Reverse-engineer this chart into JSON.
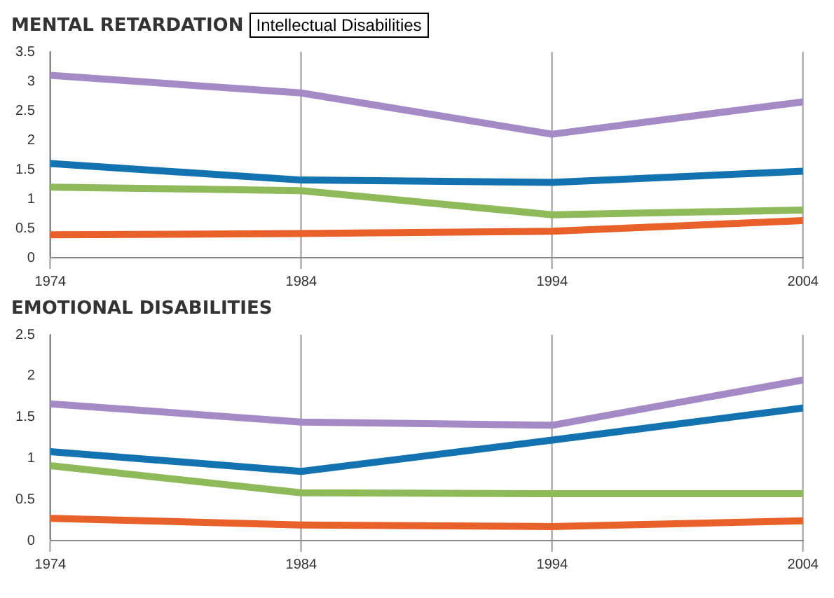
{
  "chart_data": [
    {
      "type": "line",
      "title": "MENTAL RETARDATION",
      "subtitle": "Intellectual Disabilities",
      "x": [
        1974,
        1984,
        1994,
        2004
      ],
      "xlim": [
        1974,
        2004
      ],
      "xticks": [
        1974,
        1984,
        1994,
        2004
      ],
      "ylim": [
        0,
        3.5
      ],
      "yticks": [
        0,
        0.5,
        1.0,
        1.5,
        2.0,
        2.5,
        3,
        3.5
      ],
      "grid": "x",
      "marker": "none",
      "series": [
        {
          "color": "#a58bc6",
          "values": [
            3.1,
            2.8,
            2.1,
            2.65
          ]
        },
        {
          "color": "#1273b0",
          "values": [
            1.6,
            1.32,
            1.28,
            1.47
          ]
        },
        {
          "color": "#8fba5a",
          "values": [
            1.2,
            1.14,
            0.73,
            0.81
          ]
        },
        {
          "color": "#e8602a",
          "values": [
            0.39,
            0.41,
            0.45,
            0.63
          ]
        }
      ]
    },
    {
      "type": "line",
      "title": "EMOTIONAL DISABILITIES",
      "x": [
        1974,
        1984,
        1994,
        2004
      ],
      "xlim": [
        1974,
        2004
      ],
      "xticks": [
        1974,
        1984,
        1994,
        2004
      ],
      "ylim": [
        0,
        2.5
      ],
      "yticks": [
        0,
        0.5,
        1.0,
        1.5,
        2.0,
        2.5
      ],
      "grid": "x",
      "marker": "none",
      "series": [
        {
          "color": "#a58bc6",
          "values": [
            1.66,
            1.44,
            1.4,
            1.95
          ]
        },
        {
          "color": "#1273b0",
          "values": [
            1.08,
            0.84,
            1.22,
            1.61
          ]
        },
        {
          "color": "#8fba5a",
          "values": [
            0.91,
            0.58,
            0.57,
            0.57
          ]
        },
        {
          "color": "#e8602a",
          "values": [
            0.27,
            0.19,
            0.17,
            0.24
          ]
        }
      ]
    }
  ]
}
